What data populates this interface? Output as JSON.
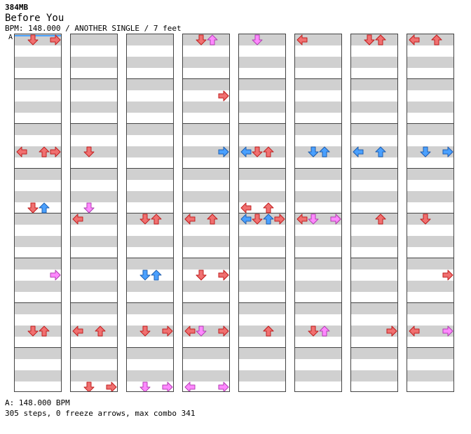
{
  "header": {
    "file_size": "384MB",
    "title": "Before You",
    "chart_info": "BPM: 148.000 / ANOTHER SINGLE / 7 feet"
  },
  "tempo_marker": "A",
  "footer": {
    "bpm_line": "A: 148.000 BPM",
    "stats_line": "305 steps, 0 freeze arrows, max combo 341"
  },
  "colors": {
    "quarter_note": "#f07070",
    "eighth_note": "#4aa0ff",
    "sixteenth_note": "#ff88ff",
    "stripe": "#d0d0d0",
    "measure_line": "#444444"
  },
  "lane_directions": [
    "left",
    "down",
    "up",
    "right"
  ],
  "chart_data": {
    "type": "table",
    "columns": 8,
    "measures_per_column": 8,
    "measure_count": 64,
    "steps": 305,
    "freeze_arrows": 0,
    "max_combo": 341,
    "bpm": 148.0,
    "notes": [
      [
        0,
        0,
        1,
        0
      ],
      [
        0,
        3,
        1,
        0
      ],
      [
        0,
        3,
        1,
        0
      ],
      [
        0,
        2,
        1,
        0
      ],
      [
        0,
        3,
        0,
        1
      ],
      [
        0,
        2,
        0,
        0
      ],
      [
        0,
        5,
        0,
        2
      ],
      [
        0,
        6,
        1,
        0
      ],
      [
        1,
        3,
        0,
        1
      ],
      [
        1,
        3,
        0,
        2
      ],
      [
        1,
        2,
        1,
        0
      ],
      [
        1,
        4,
        1,
        0
      ],
      [
        1,
        6,
        1,
        0
      ],
      [
        1,
        7,
        1,
        0
      ],
      [
        2,
        4,
        1,
        0
      ],
      [
        2,
        5,
        0,
        1
      ],
      [
        2,
        6,
        1,
        0
      ],
      [
        2,
        7,
        0,
        2
      ],
      [
        3,
        0,
        1,
        0
      ],
      [
        3,
        1,
        1,
        0
      ],
      [
        3,
        2,
        0,
        1
      ],
      [
        3,
        4,
        1,
        0
      ],
      [
        3,
        5,
        1,
        0
      ],
      [
        3,
        6,
        0,
        2
      ],
      [
        3,
        8,
        0,
        2
      ],
      [
        3,
        9,
        1,
        0
      ],
      [
        3,
        10,
        0,
        1
      ],
      [
        3,
        12,
        1,
        0
      ],
      [
        3,
        13,
        1,
        0
      ],
      [
        3,
        14,
        1,
        0
      ],
      [
        3,
        15,
        0,
        2
      ],
      [
        4,
        2,
        0,
        1
      ],
      [
        4,
        3,
        1,
        0
      ],
      [
        4,
        4,
        0,
        1
      ],
      [
        4,
        6,
        1,
        0
      ],
      [
        4,
        8,
        0,
        2
      ],
      [
        4,
        10,
        1,
        0
      ],
      [
        4,
        12,
        1,
        0
      ],
      [
        4,
        14,
        1,
        0
      ],
      [
        5,
        2,
        0,
        1
      ],
      [
        5,
        4,
        1,
        0
      ],
      [
        5,
        6,
        0,
        2
      ],
      [
        5,
        8,
        1,
        0
      ],
      [
        5,
        10,
        0,
        1
      ],
      [
        5,
        12,
        0,
        2
      ],
      [
        5,
        14,
        1,
        0
      ],
      [
        6,
        0,
        1,
        0
      ],
      [
        6,
        2,
        0,
        1
      ],
      [
        6,
        4,
        1,
        0
      ],
      [
        6,
        6,
        1,
        0
      ],
      [
        6,
        8,
        1,
        0
      ],
      [
        6,
        10,
        0,
        1
      ],
      [
        6,
        12,
        1,
        0
      ],
      [
        6,
        14,
        1,
        0
      ],
      [
        7,
        0,
        1,
        0
      ],
      [
        7,
        2,
        0,
        2
      ],
      [
        7,
        4,
        1,
        0
      ],
      [
        7,
        6,
        1,
        0
      ],
      [
        7,
        8,
        1,
        0
      ],
      [
        7,
        10,
        0,
        1
      ],
      [
        7,
        12,
        1,
        0
      ],
      [
        7,
        13,
        1,
        0
      ],
      [
        7,
        14,
        0,
        2
      ]
    ]
  }
}
